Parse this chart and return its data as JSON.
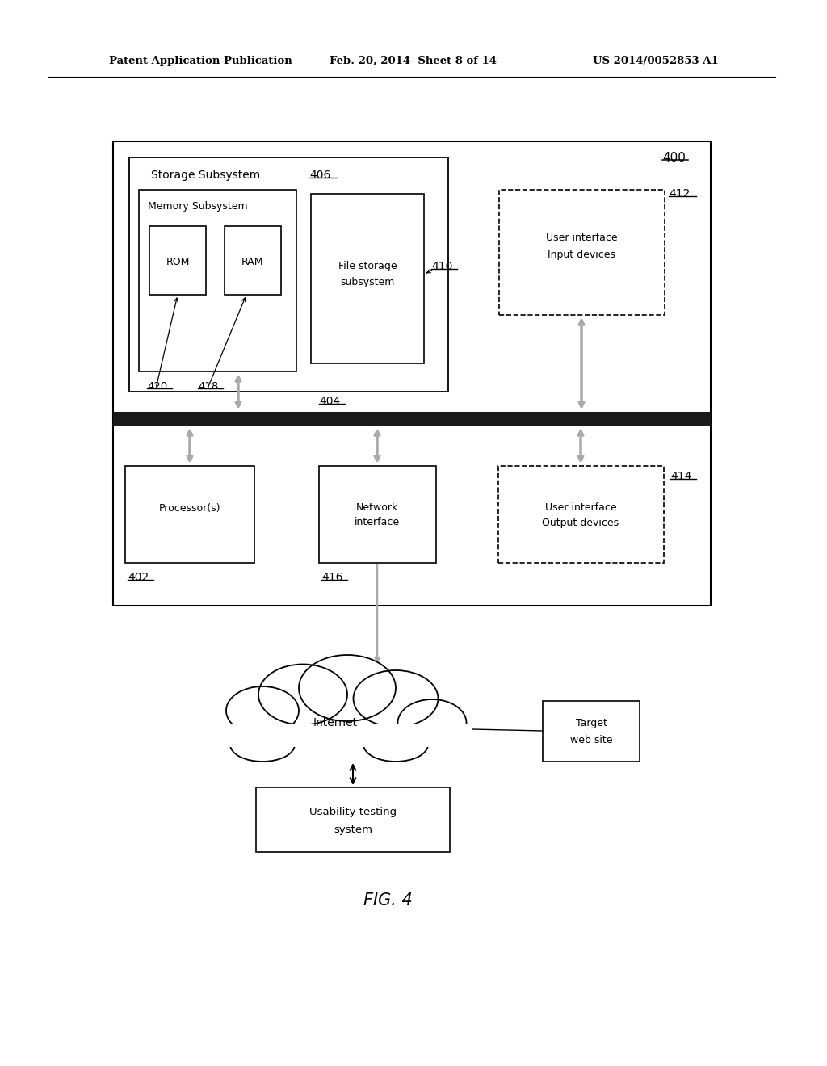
{
  "bg_color": "#ffffff",
  "header_text_left": "Patent Application Publication",
  "header_text_mid": "Feb. 20, 2014  Sheet 8 of 14",
  "header_text_right": "US 2014/0052853 A1",
  "fig_label": "FIG. 4"
}
